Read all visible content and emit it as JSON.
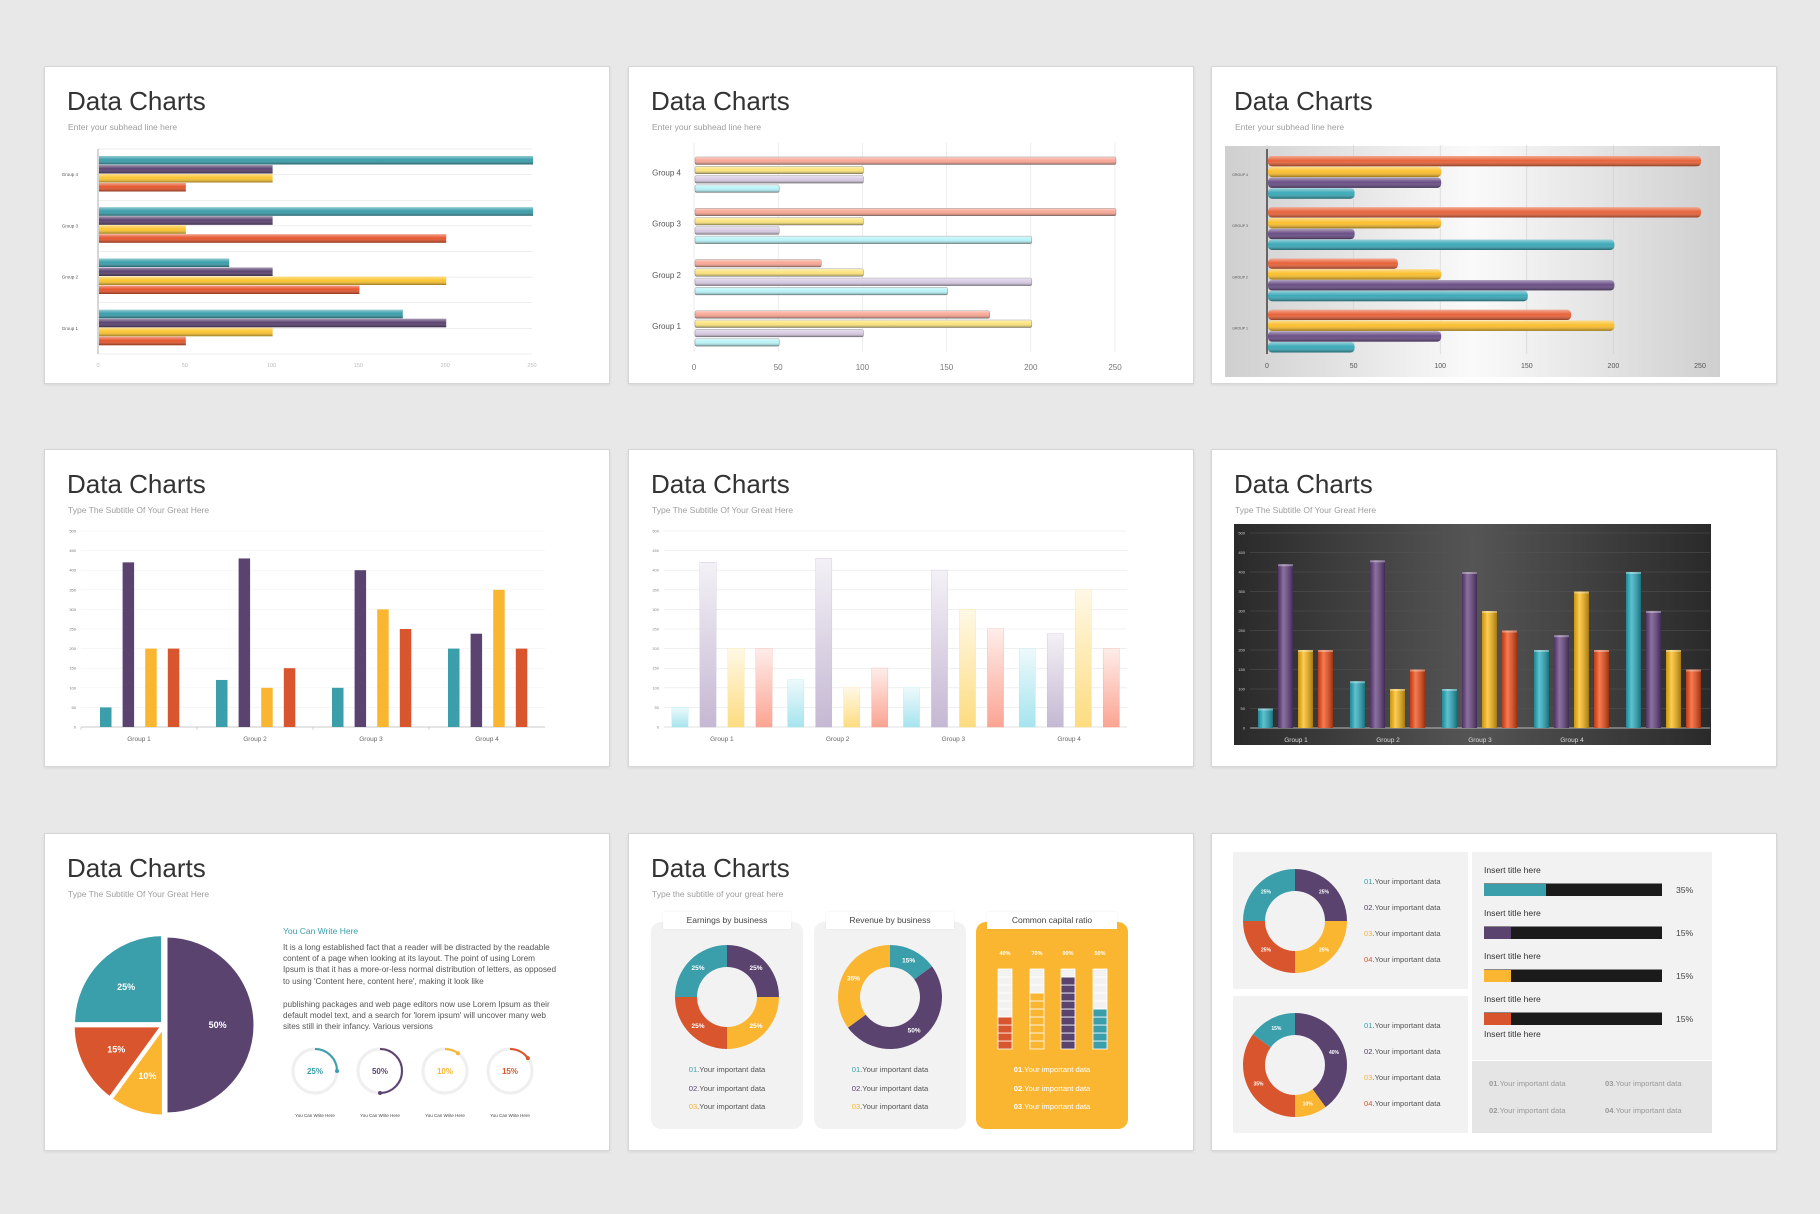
{
  "colors": {
    "teal": "#3a9eab",
    "purple": "#5b4370",
    "yellow": "#fbb631",
    "orange": "#d9552d",
    "background": "#e9e8e9"
  },
  "slides": [
    {
      "title": "Data Charts",
      "subtitle": "Enter your subhead line here"
    },
    {
      "title": "Data Charts",
      "subtitle": "Enter your subhead line here"
    },
    {
      "title": "Data Charts",
      "subtitle": "Enter your subhead line here"
    },
    {
      "title": "Data Charts",
      "subtitle": "Type The Subtitle Of Your Great Here"
    },
    {
      "title": "Data Charts",
      "subtitle": "Type The Subtitle Of Your Great Here"
    },
    {
      "title": "Data Charts",
      "subtitle": "Type The Subtitle Of Your Great Here"
    },
    {
      "title": "Data Charts",
      "subtitle": "Type The Subtitle Of Your Great Here"
    },
    {
      "title": "Data Charts",
      "subtitle": "Type the subtitle of your great here"
    }
  ],
  "pie_slide": {
    "heading": "You Can Write Here",
    "paragraph_1": "It is a long established fact that a reader will be distracted by the readable content of a page when looking at its layout. The point of using Lorem Ipsum is that it has a more-or-less normal distribution of letters, as opposed to using 'Content here, content here', making it look like",
    "paragraph_2": "publishing packages and web page editors now use Lorem Ipsum as their default model text, and a search for 'lorem ipsum' will uncover many web sites still in their infancy. Various versions",
    "ring_captions": [
      "You Can Write Here",
      "You Can Write Here",
      "You Can Write Here",
      "You Can Write Here"
    ]
  },
  "business_slide": {
    "panels": [
      {
        "title": "Earnings by business",
        "legend": [
          {
            "num": "01",
            "text": ".Your important data"
          },
          {
            "num": "02",
            "text": ".Your important data"
          },
          {
            "num": "03",
            "text": ".Your important data"
          }
        ]
      },
      {
        "title": "Revenue by business",
        "legend": [
          {
            "num": "01",
            "text": ".Your important data"
          },
          {
            "num": "02",
            "text": ".Your important data"
          },
          {
            "num": "03",
            "text": ".Your important data"
          }
        ]
      },
      {
        "title": "Common capital ratio",
        "legend": [
          {
            "num": "01",
            "text": ".Your important data"
          },
          {
            "num": "02",
            "text": ".Your important data"
          },
          {
            "num": "03",
            "text": ".Your important data"
          }
        ]
      }
    ]
  },
  "dashboard_slide": {
    "legend_top": [
      {
        "num": "01",
        "text": ".Your important data"
      },
      {
        "num": "02",
        "text": ".Your important data"
      },
      {
        "num": "03",
        "text": ".Your important data"
      },
      {
        "num": "04",
        "text": ".Your important data"
      }
    ],
    "legend_bottom": [
      {
        "num": "01",
        "text": ".Your important data"
      },
      {
        "num": "02",
        "text": ".Your important data"
      },
      {
        "num": "03",
        "text": ".Your important data"
      },
      {
        "num": "04",
        "text": ".Your important data"
      }
    ],
    "extra_title": "Insert title here",
    "footer_legend": [
      {
        "num": "01",
        "text": ".Your important data"
      },
      {
        "num": "03",
        "text": ".Your important data"
      },
      {
        "num": "02",
        "text": ".Your important data"
      },
      {
        "num": "04",
        "text": ".Your important data"
      }
    ]
  },
  "chart_data": [
    {
      "type": "bar",
      "orientation": "horizontal",
      "categories": [
        "Group 1",
        "Group 2",
        "Group 3",
        "Group 4"
      ],
      "series": [
        {
          "color": "#3a9eab",
          "values": [
            175,
            75,
            250,
            250
          ]
        },
        {
          "color": "#5b4370",
          "values": [
            200,
            100,
            100,
            100
          ]
        },
        {
          "color": "#fbc531",
          "values": [
            100,
            200,
            50,
            100
          ]
        },
        {
          "color": "#e5562e",
          "values": [
            50,
            150,
            200,
            50
          ]
        }
      ],
      "xlim": [
        0,
        250
      ],
      "xticks": [
        "0",
        "50",
        "100",
        "150",
        "200",
        "250"
      ],
      "grid": true
    },
    {
      "type": "bar",
      "orientation": "horizontal",
      "categories": [
        "Group 1",
        "Group 2",
        "Group 3",
        "Group 4"
      ],
      "series": [
        {
          "color": "#f9a795",
          "values": [
            175,
            75,
            250,
            250
          ]
        },
        {
          "color": "#fde47e",
          "values": [
            200,
            100,
            100,
            100
          ]
        },
        {
          "color": "#d8cce3",
          "values": [
            100,
            200,
            50,
            100
          ]
        },
        {
          "color": "#b8f3f8",
          "values": [
            50,
            150,
            200,
            50
          ]
        }
      ],
      "xlim": [
        0,
        250
      ],
      "xticks": [
        "0",
        "50",
        "100",
        "150",
        "200",
        "250"
      ],
      "grid": true
    },
    {
      "type": "bar",
      "orientation": "horizontal",
      "categories": [
        "GROUP 1",
        "GROUP 2",
        "GROUP 3",
        "GROUP 4"
      ],
      "series": [
        {
          "color": "#e8633a",
          "values": [
            175,
            75,
            250,
            250
          ]
        },
        {
          "color": "#fbbf2e",
          "values": [
            200,
            100,
            100,
            100
          ]
        },
        {
          "color": "#6a4f86",
          "values": [
            100,
            200,
            50,
            100
          ]
        },
        {
          "color": "#3ba9b8",
          "values": [
            50,
            150,
            200,
            50
          ]
        }
      ],
      "xlim": [
        0,
        250
      ],
      "xticks": [
        "0",
        "50",
        "100",
        "150",
        "200",
        "250"
      ],
      "grid": true
    },
    {
      "type": "bar",
      "orientation": "vertical",
      "categories": [
        "Group 1",
        "Group 2",
        "Group 3",
        "Group 4"
      ],
      "series": [
        {
          "color": "#3a9eab",
          "values": [
            50,
            120,
            100,
            200
          ]
        },
        {
          "color": "#5b4370",
          "values": [
            420,
            430,
            400,
            238
          ]
        },
        {
          "color": "#fbb631",
          "values": [
            200,
            100,
            300,
            350
          ]
        },
        {
          "color": "#d9552d",
          "values": [
            200,
            150,
            250,
            200
          ]
        }
      ],
      "ylim": [
        0,
        500
      ],
      "yticks": [
        "0",
        "50",
        "100",
        "150",
        "200",
        "250",
        "300",
        "350",
        "400",
        "450",
        "500"
      ],
      "grid": true
    },
    {
      "type": "bar",
      "orientation": "vertical",
      "categories": [
        "Group 1",
        "Group 2",
        "Group 3",
        "Group 4"
      ],
      "series": [
        {
          "color": "#a6e4ee",
          "values": [
            50,
            120,
            100,
            200
          ]
        },
        {
          "color": "#c5b8d3",
          "values": [
            420,
            430,
            400,
            238
          ]
        },
        {
          "color": "#fddc80",
          "values": [
            200,
            100,
            300,
            350
          ]
        },
        {
          "color": "#fba493",
          "values": [
            200,
            150,
            250,
            200
          ]
        }
      ],
      "ylim": [
        0,
        500
      ],
      "yticks": [
        "0",
        "50",
        "100",
        "150",
        "200",
        "250",
        "300",
        "350",
        "400",
        "450",
        "500"
      ],
      "grid": true
    },
    {
      "type": "bar",
      "orientation": "vertical",
      "categories": [
        "Group 1",
        "Group 2",
        "Group 3",
        "Group 4",
        ""
      ],
      "series": [
        {
          "color": "#27acbf",
          "values": [
            50,
            120,
            100,
            200,
            400
          ]
        },
        {
          "color": "#64407f",
          "values": [
            420,
            430,
            400,
            238,
            300
          ]
        },
        {
          "color": "#fdba14",
          "values": [
            200,
            100,
            300,
            350,
            200
          ]
        },
        {
          "color": "#f24c15",
          "values": [
            200,
            150,
            250,
            200,
            150
          ]
        }
      ],
      "ylim": [
        0,
        500
      ],
      "yticks": [
        "0",
        "50",
        "100",
        "150",
        "200",
        "250",
        "300",
        "350",
        "400",
        "450",
        "500"
      ],
      "grid": true,
      "background": "#3a3a3a"
    },
    {
      "type": "pie",
      "slices": [
        {
          "label": "50%",
          "value": 50,
          "color": "#5b4370"
        },
        {
          "label": "10%",
          "value": 10,
          "color": "#fbb631"
        },
        {
          "label": "15%",
          "value": 15,
          "color": "#d9552d"
        },
        {
          "label": "25%",
          "value": 25,
          "color": "#3a9eab"
        }
      ]
    },
    {
      "type": "progress-rings",
      "items": [
        {
          "label": "25%",
          "value": 25,
          "color": "#3a9eab"
        },
        {
          "label": "50%",
          "value": 50,
          "color": "#5b4370"
        },
        {
          "label": "10%",
          "value": 10,
          "color": "#fbb631"
        },
        {
          "label": "15%",
          "value": 15,
          "color": "#d9552d"
        }
      ]
    },
    {
      "type": "donut",
      "title": "Earnings by business",
      "slices": [
        {
          "label": "25%",
          "value": 25,
          "color": "#5b4370"
        },
        {
          "label": "25%",
          "value": 25,
          "color": "#fbb631"
        },
        {
          "label": "25%",
          "value": 25,
          "color": "#d9552d"
        },
        {
          "label": "25%",
          "value": 25,
          "color": "#3a9eab"
        }
      ]
    },
    {
      "type": "donut",
      "title": "Revenue by business",
      "slices": [
        {
          "label": "15%",
          "value": 15,
          "color": "#3a9eab"
        },
        {
          "label": "50%",
          "value": 50,
          "color": "#5b4370"
        },
        {
          "label": "35%",
          "value": 35,
          "color": "#fbb631"
        }
      ]
    },
    {
      "type": "bar",
      "orientation": "vertical",
      "title": "Common capital ratio",
      "bars": [
        {
          "label": "40%",
          "value": 40,
          "color": "#d9552d"
        },
        {
          "label": "70%",
          "value": 70,
          "color": "#fbb631"
        },
        {
          "label": "90%",
          "value": 90,
          "color": "#5b4370"
        },
        {
          "label": "50%",
          "value": 50,
          "color": "#3a9eab"
        }
      ],
      "ylim": [
        0,
        100
      ]
    },
    {
      "type": "donut",
      "slices": [
        {
          "label": "25%",
          "value": 25,
          "color": "#5b4370"
        },
        {
          "label": "25%",
          "value": 25,
          "color": "#fbb631"
        },
        {
          "label": "25%",
          "value": 25,
          "color": "#d9552d"
        },
        {
          "label": "25%",
          "value": 25,
          "color": "#3a9eab"
        }
      ]
    },
    {
      "type": "donut",
      "slices": [
        {
          "label": "40%",
          "value": 40,
          "color": "#5b4370"
        },
        {
          "label": "10%",
          "value": 10,
          "color": "#fbb631"
        },
        {
          "label": "35%",
          "value": 35,
          "color": "#d9552d"
        },
        {
          "label": "15%",
          "value": 15,
          "color": "#3a9eab"
        }
      ]
    },
    {
      "type": "progress-bars",
      "items": [
        {
          "title": "Insert title here",
          "label": "35%",
          "value": 35,
          "color": "#3a9eab"
        },
        {
          "title": "Insert title here",
          "label": "15%",
          "value": 15,
          "color": "#5b4370"
        },
        {
          "title": "Insert title here",
          "label": "15%",
          "value": 15,
          "color": "#fbb631"
        },
        {
          "title": "Insert title here",
          "label": "15%",
          "value": 15,
          "color": "#d9552d"
        }
      ]
    }
  ]
}
